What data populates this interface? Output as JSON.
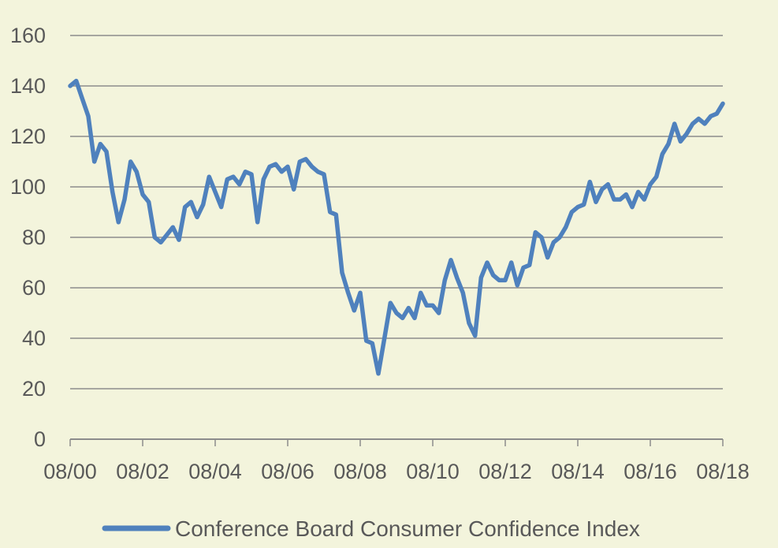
{
  "colors": {
    "background": "#f3f4dc",
    "series": "#4f81bd",
    "grid": "#8c8c8c",
    "text": "#595959"
  },
  "chart_data": {
    "type": "line",
    "title": "",
    "xlabel": "",
    "ylabel": "",
    "ylim": [
      0,
      160
    ],
    "yticks": [
      0,
      20,
      40,
      60,
      80,
      100,
      120,
      140,
      160
    ],
    "x_range": [
      "2000-08",
      "2018-08"
    ],
    "xtick_labels": [
      "08/00",
      "08/02",
      "08/04",
      "08/06",
      "08/08",
      "08/10",
      "08/12",
      "08/14",
      "08/16",
      "08/18"
    ],
    "grid": true,
    "legend_position": "bottom",
    "series": [
      {
        "name": "Conference Board Consumer Confidence Index",
        "x": [
          "2000-08",
          "2000-10",
          "2000-12",
          "2001-02",
          "2001-04",
          "2001-06",
          "2001-08",
          "2001-10",
          "2001-12",
          "2002-02",
          "2002-04",
          "2002-06",
          "2002-08",
          "2002-10",
          "2002-12",
          "2003-02",
          "2003-04",
          "2003-06",
          "2003-08",
          "2003-10",
          "2003-12",
          "2004-02",
          "2004-04",
          "2004-06",
          "2004-08",
          "2004-10",
          "2004-12",
          "2005-02",
          "2005-04",
          "2005-06",
          "2005-08",
          "2005-10",
          "2005-12",
          "2006-02",
          "2006-04",
          "2006-06",
          "2006-08",
          "2006-10",
          "2006-12",
          "2007-02",
          "2007-04",
          "2007-06",
          "2007-08",
          "2007-10",
          "2007-12",
          "2008-02",
          "2008-04",
          "2008-06",
          "2008-08",
          "2008-10",
          "2008-12",
          "2009-02",
          "2009-04",
          "2009-06",
          "2009-08",
          "2009-10",
          "2009-12",
          "2010-02",
          "2010-04",
          "2010-06",
          "2010-08",
          "2010-10",
          "2010-12",
          "2011-02",
          "2011-04",
          "2011-06",
          "2011-08",
          "2011-10",
          "2011-12",
          "2012-02",
          "2012-04",
          "2012-06",
          "2012-08",
          "2012-10",
          "2012-12",
          "2013-02",
          "2013-04",
          "2013-06",
          "2013-08",
          "2013-10",
          "2013-12",
          "2014-02",
          "2014-04",
          "2014-06",
          "2014-08",
          "2014-10",
          "2014-12",
          "2015-02",
          "2015-04",
          "2015-06",
          "2015-08",
          "2015-10",
          "2015-12",
          "2016-02",
          "2016-04",
          "2016-06",
          "2016-08",
          "2016-10",
          "2016-12",
          "2017-02",
          "2017-04",
          "2017-06",
          "2017-08",
          "2017-10",
          "2017-12",
          "2018-02",
          "2018-04",
          "2018-06",
          "2018-08"
        ],
        "values": [
          140,
          142,
          135,
          128,
          110,
          117,
          114,
          98,
          86,
          95,
          110,
          106,
          97,
          94,
          80,
          78,
          81,
          84,
          79,
          92,
          94,
          88,
          93,
          104,
          98,
          92,
          103,
          104,
          101,
          106,
          105,
          86,
          103,
          108,
          109,
          106,
          108,
          99,
          110,
          111,
          108,
          106,
          105,
          90,
          89,
          66,
          58,
          51,
          58,
          39,
          38,
          26,
          40,
          54,
          50,
          48,
          52,
          48,
          58,
          53,
          53,
          50,
          63,
          71,
          64,
          58,
          46,
          41,
          64,
          70,
          65,
          63,
          63,
          70,
          61,
          68,
          69,
          82,
          80,
          72,
          78,
          80,
          84,
          90,
          92,
          93,
          102,
          94,
          99,
          101,
          95,
          95,
          97,
          92,
          98,
          95,
          101,
          104,
          113,
          117,
          125,
          118,
          121,
          125,
          127,
          125,
          128,
          129,
          133
        ]
      }
    ]
  }
}
